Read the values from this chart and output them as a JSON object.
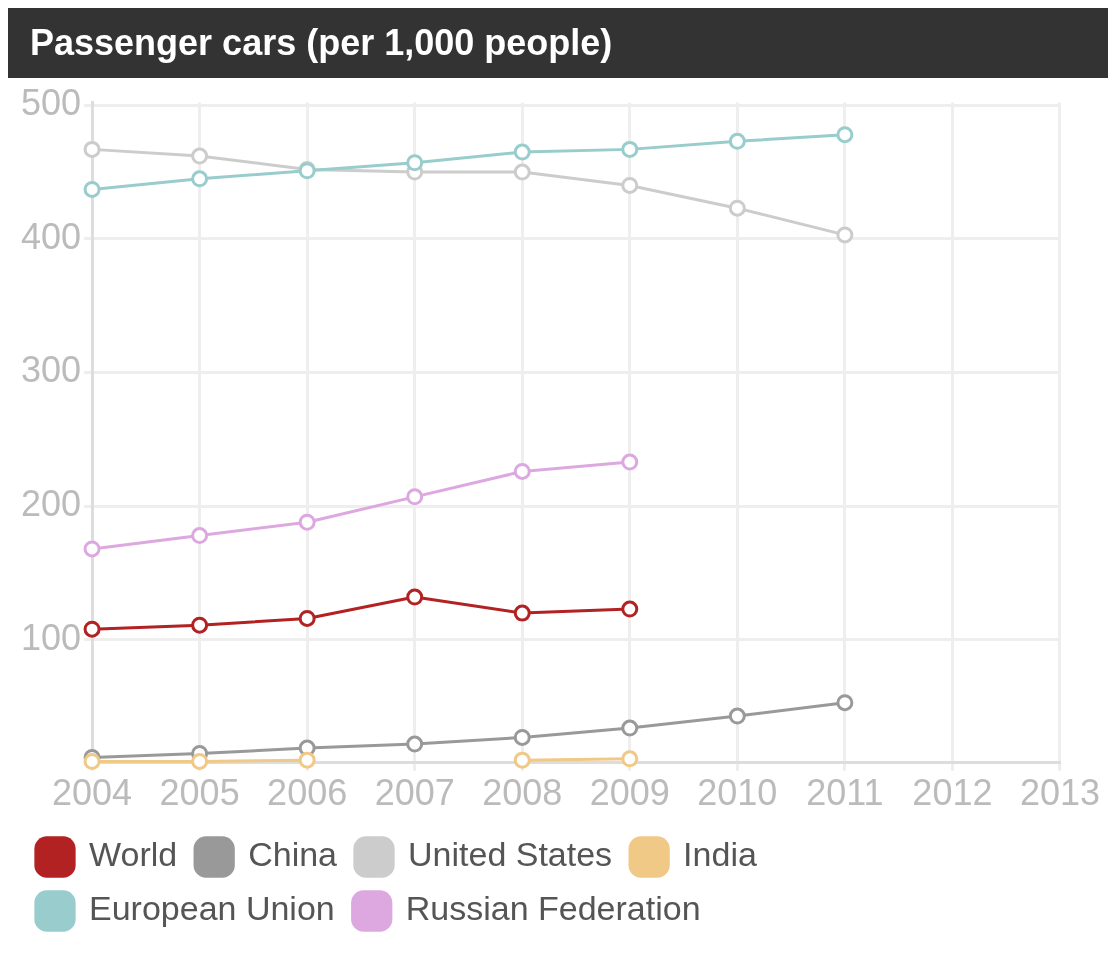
{
  "chart_data": {
    "type": "line",
    "title": "Passenger cars (per 1,000 people)",
    "x": [
      2004,
      2005,
      2006,
      2007,
      2008,
      2009,
      2010,
      2011
    ],
    "xlim": [
      2004,
      2013
    ],
    "xticks": [
      2004,
      2005,
      2006,
      2007,
      2008,
      2009,
      2010,
      2011,
      2012,
      2013
    ],
    "ylim": [
      8,
      502
    ],
    "yticks": [
      100,
      200,
      300,
      400,
      500
    ],
    "grid": true,
    "legend": "bottom",
    "marker": "circle",
    "series": [
      {
        "name": "World",
        "color": "#b22222",
        "values": [
          108,
          111,
          116,
          132,
          120,
          123,
          null,
          null
        ]
      },
      {
        "name": "China",
        "color": "#999999",
        "values": [
          12,
          15,
          19,
          22,
          27,
          34,
          43,
          53
        ]
      },
      {
        "name": "United States",
        "color": "#cccccc",
        "values": [
          467,
          462,
          452,
          450,
          450,
          440,
          423,
          403
        ]
      },
      {
        "name": "India",
        "color": "#f0c987",
        "values": [
          9,
          9,
          10,
          null,
          10,
          11,
          null,
          null
        ]
      },
      {
        "name": "European Union",
        "color": "#99cccc",
        "values": [
          437,
          445,
          451,
          457,
          465,
          467,
          473,
          478
        ]
      },
      {
        "name": "Russian Federation",
        "color": "#dda8e0",
        "values": [
          168,
          178,
          188,
          207,
          226,
          233,
          null,
          null
        ]
      }
    ]
  }
}
